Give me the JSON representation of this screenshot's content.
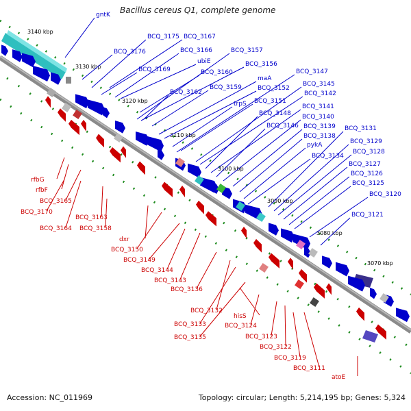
{
  "title": "Bacillus cereus Q1, complete genome",
  "footer": {
    "accession": "Accession: NC_011969",
    "stats": "Topology: circular; Length: 5,214,195 bp; Genes: 5,324"
  },
  "ruler_labels": [
    "3140 kbp",
    "3130 kbp",
    "3120 kbp",
    "3110 kbp",
    "3100 kbp",
    "3090 kbp",
    "3080 kbp",
    "3070 kbp"
  ],
  "forward_genes": [
    "gntK",
    "BCQ_3175",
    "BCQ_3167",
    "BCQ_3176",
    "BCQ_3166",
    "ubiE",
    "BCQ_3169",
    "BCQ_3160",
    "BCQ_3157",
    "BCQ_3156",
    "BCQ_3162",
    "BCQ_3159",
    "maA",
    "BCQ_3152",
    "BCQ_3147",
    "trpS",
    "BCQ_3151",
    "BCQ_3145",
    "BCQ_3142",
    "BCQ_3148",
    "BCQ_3141",
    "BCQ_3146",
    "BCQ_3140",
    "BCQ_3139",
    "BCQ_3131",
    "BCQ_3138",
    "pykA",
    "BCQ_3129",
    "BCQ_3128",
    "BCQ_3134",
    "BCQ_3127",
    "BCQ_3126",
    "BCQ_3125",
    "BCQ_3120",
    "BCQ_3121"
  ],
  "reverse_genes": [
    "rfbG",
    "rfbF",
    "BCQ_3165",
    "BCQ_3170",
    "BCQ_3163",
    "BCQ_3164",
    "BCQ_3158",
    "dxr",
    "BCQ_3150",
    "BCQ_3149",
    "BCQ_3144",
    "BCQ_3143",
    "BCQ_3136",
    "BCQ_3132",
    "BCQ_3133",
    "hisS",
    "BCQ_3124",
    "BCQ_3135",
    "BCQ_3123",
    "BCQ_3122",
    "BCQ_3119",
    "BCQ_3111",
    "atoE"
  ],
  "colors": {
    "forward": "#0000cc",
    "reverse": "#cc0000",
    "backbone": "#808080",
    "ruler_ticks": "#228b22",
    "cyan_feature": "#3cc8c8",
    "purple_feature": "#4a3f9a"
  }
}
